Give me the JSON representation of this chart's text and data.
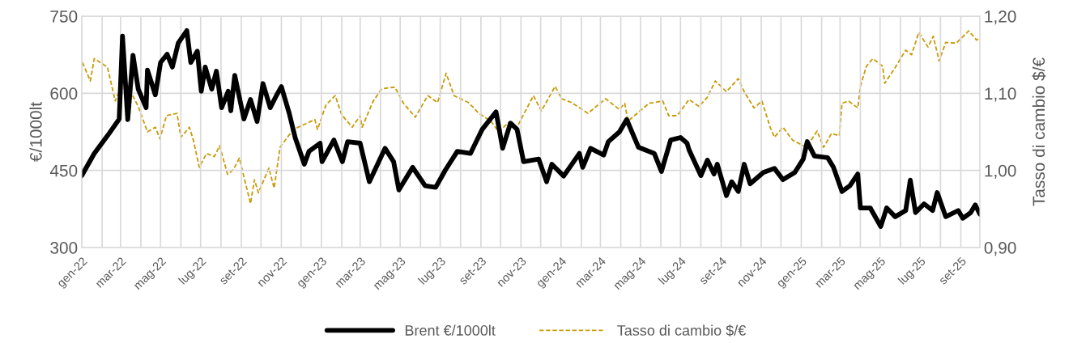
{
  "chart_data": {
    "type": "line",
    "ylabel": "€/1000lt",
    "y2label": "Tasso di cambio $/€",
    "xlim": [
      "2022-01-01",
      "2025-09-30"
    ],
    "xticks": [
      {
        "value": "2022-01",
        "label": "gen-22"
      },
      {
        "value": "2022-02",
        "label": null
      },
      {
        "value": "2022-03",
        "label": "mar-22"
      },
      {
        "value": "2022-04",
        "label": null
      },
      {
        "value": "2022-05",
        "label": "mag-22"
      },
      {
        "value": "2022-06",
        "label": null
      },
      {
        "value": "2022-07",
        "label": "lug-22"
      },
      {
        "value": "2022-08",
        "label": null
      },
      {
        "value": "2022-09",
        "label": "set-22"
      },
      {
        "value": "2022-10",
        "label": null
      },
      {
        "value": "2022-11",
        "label": "nov-22"
      },
      {
        "value": "2022-12",
        "label": null
      },
      {
        "value": "2023-01",
        "label": "gen-23"
      },
      {
        "value": "2023-02",
        "label": null
      },
      {
        "value": "2023-03",
        "label": "mar-23"
      },
      {
        "value": "2023-04",
        "label": null
      },
      {
        "value": "2023-05",
        "label": "mag-23"
      },
      {
        "value": "2023-06",
        "label": null
      },
      {
        "value": "2023-07",
        "label": "lug-23"
      },
      {
        "value": "2023-08",
        "label": null
      },
      {
        "value": "2023-09",
        "label": "set-23"
      },
      {
        "value": "2023-10",
        "label": null
      },
      {
        "value": "2023-11",
        "label": "nov-23"
      },
      {
        "value": "2023-12",
        "label": null
      },
      {
        "value": "2024-01",
        "label": "gen-24"
      },
      {
        "value": "2024-02",
        "label": null
      },
      {
        "value": "2024-03",
        "label": "mar-24"
      },
      {
        "value": "2024-04",
        "label": null
      },
      {
        "value": "2024-05",
        "label": "mag-24"
      },
      {
        "value": "2024-06",
        "label": null
      },
      {
        "value": "2024-07",
        "label": "lug-24"
      },
      {
        "value": "2024-08",
        "label": null
      },
      {
        "value": "2024-09",
        "label": "set-24"
      },
      {
        "value": "2024-10",
        "label": null
      },
      {
        "value": "2024-11",
        "label": "nov-24"
      },
      {
        "value": "2024-12",
        "label": null
      },
      {
        "value": "2025-01",
        "label": "gen-25"
      },
      {
        "value": "2025-02",
        "label": null
      },
      {
        "value": "2025-03",
        "label": "mar-25"
      },
      {
        "value": "2025-04",
        "label": null
      },
      {
        "value": "2025-05",
        "label": "mag-25"
      },
      {
        "value": "2025-06",
        "label": null
      },
      {
        "value": "2025-07",
        "label": "lug-25"
      },
      {
        "value": "2025-08",
        "label": null
      },
      {
        "value": "2025-09",
        "label": "set-25"
      }
    ],
    "ylim": [
      300,
      750
    ],
    "yticks": [
      300,
      450,
      600,
      750
    ],
    "y2lim": [
      0.9,
      1.2
    ],
    "y2ticks": [
      {
        "value": 0.9,
        "label": "0,90"
      },
      {
        "value": 1.0,
        "label": "1,00"
      },
      {
        "value": 1.1,
        "label": "1,10"
      },
      {
        "value": 1.2,
        "label": "1,20"
      }
    ],
    "grid": true,
    "legend": "bottom",
    "marker": "none",
    "series": [
      {
        "name": "Brent €/1000lt",
        "color": "#000000",
        "line_style": "solid",
        "x": [
          "2022-01-01",
          "2022-01-20",
          "2022-02-10",
          "2022-02-27",
          "2022-03-04",
          "2022-03-12",
          "2022-03-20",
          "2022-03-28",
          "2022-04-09",
          "2022-04-11",
          "2022-04-23",
          "2022-05-01",
          "2022-05-11",
          "2022-05-19",
          "2022-05-28",
          "2022-06-10",
          "2022-06-16",
          "2022-06-26",
          "2022-07-02",
          "2022-07-08",
          "2022-07-18",
          "2022-07-25",
          "2022-08-02",
          "2022-08-12",
          "2022-08-16",
          "2022-08-22",
          "2022-09-05",
          "2022-09-15",
          "2022-09-25",
          "2022-10-04",
          "2022-10-15",
          "2022-10-25",
          "2022-11-01",
          "2022-11-13",
          "2022-11-22",
          "2022-12-06",
          "2022-12-13",
          "2022-12-30",
          "2023-01-02",
          "2023-01-20",
          "2023-02-02",
          "2023-02-10",
          "2023-03-01",
          "2023-03-15",
          "2023-04-08",
          "2023-04-21",
          "2023-04-29",
          "2023-05-20",
          "2023-06-08",
          "2023-06-24",
          "2023-07-09",
          "2023-07-27",
          "2023-08-16",
          "2023-09-03",
          "2023-09-24",
          "2023-10-04",
          "2023-10-16",
          "2023-10-26",
          "2023-11-05",
          "2023-11-28",
          "2023-12-10",
          "2023-12-18",
          "2024-01-05",
          "2024-01-29",
          "2024-02-03",
          "2024-02-15",
          "2024-03-06",
          "2024-03-13",
          "2024-03-30",
          "2024-04-10",
          "2024-04-28",
          "2024-05-22",
          "2024-06-02",
          "2024-06-16",
          "2024-07-01",
          "2024-07-11",
          "2024-07-14",
          "2024-08-01",
          "2024-08-11",
          "2024-08-21",
          "2024-08-26",
          "2024-09-09",
          "2024-09-17",
          "2024-09-27",
          "2024-10-06",
          "2024-10-15",
          "2024-11-04",
          "2024-11-21",
          "2024-12-04",
          "2024-12-22",
          "2025-01-04",
          "2025-01-10",
          "2025-01-21",
          "2025-02-10",
          "2025-02-19",
          "2025-03-04",
          "2025-03-16",
          "2025-03-28",
          "2025-04-01",
          "2025-04-16",
          "2025-05-02",
          "2025-05-11",
          "2025-05-24",
          "2025-06-09",
          "2025-06-16",
          "2025-06-24",
          "2025-07-07",
          "2025-07-20",
          "2025-07-27",
          "2025-08-09",
          "2025-08-28",
          "2025-09-04",
          "2025-09-16",
          "2025-09-23",
          "2025-09-30"
        ],
        "values": [
          440,
          483,
          519,
          550,
          711,
          549,
          674,
          608,
          572,
          645,
          597,
          660,
          676,
          651,
          698,
          722,
          660,
          682,
          604,
          651,
          608,
          643,
          572,
          604,
          566,
          635,
          550,
          588,
          545,
          619,
          572,
          597,
          613,
          561,
          514,
          462,
          487,
          503,
          467,
          509,
          467,
          506,
          503,
          428,
          493,
          467,
          412,
          456,
          420,
          417,
          451,
          487,
          483,
          530,
          564,
          493,
          542,
          530,
          467,
          472,
          428,
          462,
          439,
          483,
          456,
          493,
          480,
          506,
          525,
          549,
          495,
          483,
          448,
          509,
          514,
          503,
          490,
          440,
          470,
          443,
          462,
          401,
          428,
          409,
          462,
          424,
          446,
          454,
          432,
          446,
          472,
          506,
          478,
          475,
          456,
          409,
          420,
          443,
          377,
          377,
          341,
          377,
          360,
          372,
          431,
          368,
          385,
          372,
          407,
          360,
          372,
          357,
          368,
          383,
          365
        ]
      },
      {
        "name": "Tasso di cambio $/€",
        "color": "#c99a06",
        "line_style": "dashed",
        "axis": "y2",
        "x": [
          "2022-01-02",
          "2022-01-14",
          "2022-01-20",
          "2022-02-09",
          "2022-02-21",
          "2022-02-28",
          "2022-03-12",
          "2022-03-28",
          "2022-04-11",
          "2022-04-23",
          "2022-04-30",
          "2022-05-10",
          "2022-05-26",
          "2022-06-01",
          "2022-06-14",
          "2022-06-20",
          "2022-06-29",
          "2022-07-10",
          "2022-07-22",
          "2022-07-30",
          "2022-08-11",
          "2022-08-20",
          "2022-08-29",
          "2022-09-15",
          "2022-09-21",
          "2022-09-27",
          "2022-10-13",
          "2022-10-21",
          "2022-10-30",
          "2022-11-19",
          "2022-12-22",
          "2022-12-26",
          "2023-01-08",
          "2023-01-22",
          "2023-02-01",
          "2023-02-17",
          "2023-03-01",
          "2023-03-04",
          "2023-03-21",
          "2023-04-03",
          "2023-04-23",
          "2023-05-06",
          "2023-05-24",
          "2023-06-12",
          "2023-06-27",
          "2023-07-10",
          "2023-07-22",
          "2023-08-13",
          "2023-08-29",
          "2023-09-16",
          "2023-09-28",
          "2023-10-13",
          "2023-10-26",
          "2023-11-04",
          "2023-11-20",
          "2023-12-02",
          "2023-12-23",
          "2024-01-02",
          "2024-01-17",
          "2024-02-11",
          "2024-03-09",
          "2024-03-30",
          "2024-04-07",
          "2024-04-12",
          "2024-05-14",
          "2024-06-04",
          "2024-06-13",
          "2024-06-26",
          "2024-07-14",
          "2024-07-29",
          "2024-08-11",
          "2024-08-23",
          "2024-09-09",
          "2024-09-27",
          "2024-10-06",
          "2024-10-21",
          "2024-11-02",
          "2024-11-15",
          "2024-11-21",
          "2024-12-04",
          "2024-12-19",
          "2025-01-09",
          "2025-01-25",
          "2025-02-04",
          "2025-02-16",
          "2025-02-28",
          "2025-03-04",
          "2025-03-14",
          "2025-03-28",
          "2025-04-01",
          "2025-04-10",
          "2025-04-20",
          "2025-05-05",
          "2025-05-08",
          "2025-05-23",
          "2025-06-09",
          "2025-06-18",
          "2025-06-29",
          "2025-07-13",
          "2025-07-21",
          "2025-07-30",
          "2025-08-09",
          "2025-08-25",
          "2025-09-13",
          "2025-09-25",
          "2025-09-30"
        ],
        "values": [
          1.14,
          1.116,
          1.145,
          1.134,
          1.09,
          1.106,
          1.109,
          1.083,
          1.05,
          1.056,
          1.041,
          1.071,
          1.074,
          1.043,
          1.056,
          1.039,
          1.004,
          1.022,
          1.018,
          1.032,
          0.995,
          1.001,
          1.016,
          0.957,
          0.988,
          0.971,
          1.003,
          0.977,
          1.03,
          1.053,
          1.066,
          1.053,
          1.085,
          1.097,
          1.072,
          1.056,
          1.071,
          1.056,
          1.09,
          1.106,
          1.108,
          1.087,
          1.069,
          1.097,
          1.088,
          1.126,
          1.097,
          1.088,
          1.074,
          1.064,
          1.05,
          1.062,
          1.056,
          1.071,
          1.097,
          1.077,
          1.109,
          1.093,
          1.088,
          1.074,
          1.093,
          1.079,
          1.087,
          1.064,
          1.087,
          1.09,
          1.071,
          1.071,
          1.092,
          1.083,
          1.095,
          1.116,
          1.102,
          1.119,
          1.102,
          1.081,
          1.09,
          1.055,
          1.043,
          1.056,
          1.039,
          1.03,
          1.051,
          1.03,
          1.048,
          1.045,
          1.087,
          1.09,
          1.081,
          1.109,
          1.135,
          1.145,
          1.135,
          1.113,
          1.132,
          1.156,
          1.15,
          1.179,
          1.16,
          1.174,
          1.142,
          1.166,
          1.165,
          1.181,
          1.169,
          1.172
        ]
      }
    ]
  }
}
